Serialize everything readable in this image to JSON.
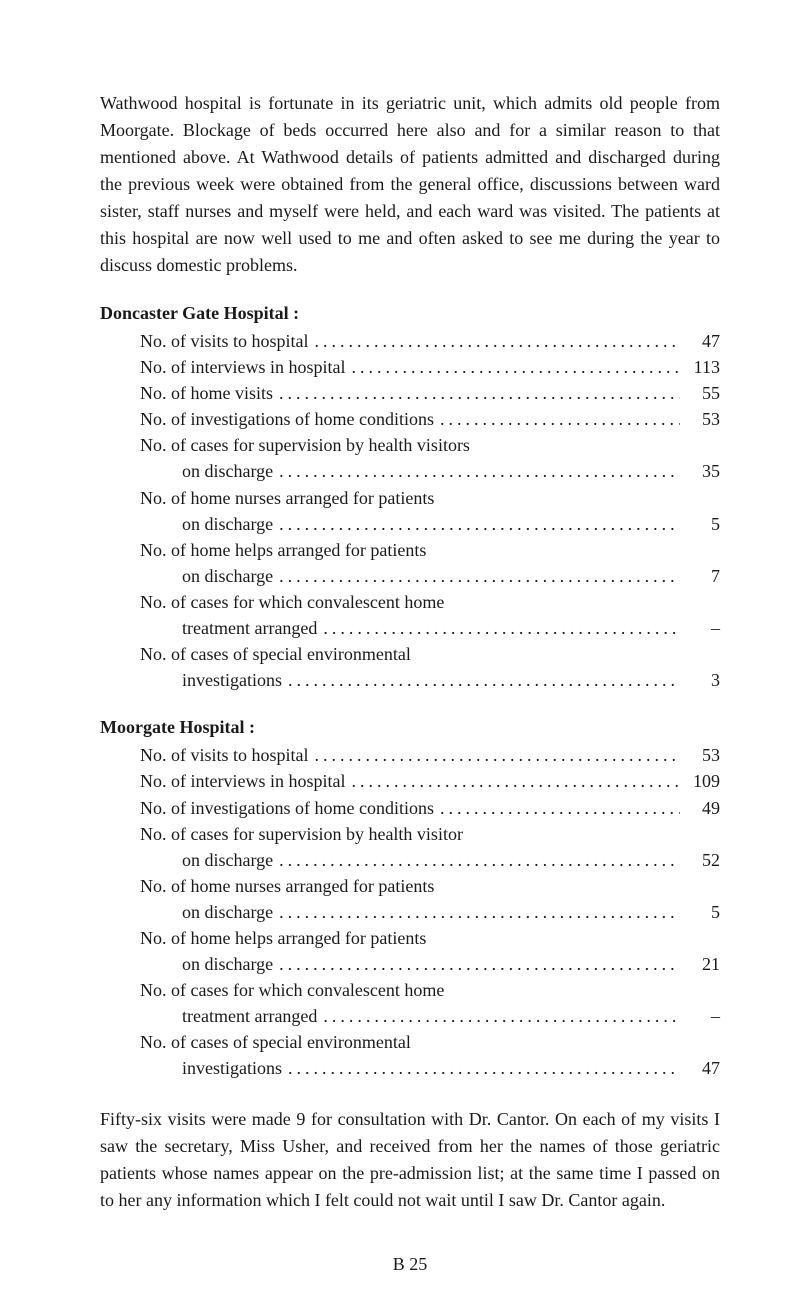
{
  "colors": {
    "background": "#ffffff",
    "text": "#1a1a1a"
  },
  "typography": {
    "family": "Times New Roman",
    "body_size": 18,
    "heading_weight": "bold"
  },
  "intro_paragraph": "Wathwood hospital is fortunate in its geriatric unit, which admits old people from Moorgate. Blockage of beds occurred here also and for a similar reason to that mentioned above. At Wathwood details of patients admitted and discharged during the previous week were obtained from the general office, discussions between ward sister, staff nurses and myself were held, and each ward was visited. The patients at this hospital are now well used to me and often asked to see me during the year to discuss domestic problems.",
  "doncaster": {
    "heading": "Doncaster Gate Hospital :",
    "rows": [
      {
        "label": "No. of visits to hospital",
        "value": "47"
      },
      {
        "label": "No. of interviews in hospital",
        "value": "113"
      },
      {
        "label": "No. of home visits",
        "value": "55"
      },
      {
        "label": "No. of investigations of home conditions",
        "value": "53"
      },
      {
        "label": "No. of cases for supervision by health visitors",
        "cont": "on discharge",
        "value": "35"
      },
      {
        "label": "No. of home nurses arranged for patients",
        "cont": "on discharge",
        "value": "5"
      },
      {
        "label": "No. of home helps arranged for patients",
        "cont": "on discharge",
        "value": "7"
      },
      {
        "label": "No. of cases for which convalescent home",
        "cont": "treatment arranged",
        "value": "–"
      },
      {
        "label": "No. of cases of special environmental",
        "cont": "investigations",
        "value": "3"
      }
    ]
  },
  "moorgate": {
    "heading": "Moorgate Hospital :",
    "rows": [
      {
        "label": "No. of visits to hospital",
        "value": "53"
      },
      {
        "label": "No. of interviews in hospital",
        "value": "109"
      },
      {
        "label": "No. of investigations of home conditions",
        "value": "49"
      },
      {
        "label": "No. of cases for supervision by health visitor",
        "cont": "on discharge",
        "value": "52"
      },
      {
        "label": "No. of home nurses arranged for patients",
        "cont": "on discharge",
        "value": "5"
      },
      {
        "label": "No. of home helps arranged for patients",
        "cont": "on discharge",
        "value": "21"
      },
      {
        "label": "No. of cases for which convalescent home",
        "cont": "treatment arranged",
        "value": "–"
      },
      {
        "label": "No. of cases of special environmental",
        "cont": "investigations",
        "value": "47"
      }
    ]
  },
  "closing_paragraph": "Fifty-six visits were made 9 for consultation with Dr. Cantor. On each of my visits I saw the secretary, Miss Usher, and received from her the names of those geriatric patients whose names appear on the pre-admission list; at the same time I passed on to her any information which I felt could not wait until I saw Dr. Cantor again.",
  "page_number": "B 25",
  "dots_fill": "..................................................."
}
